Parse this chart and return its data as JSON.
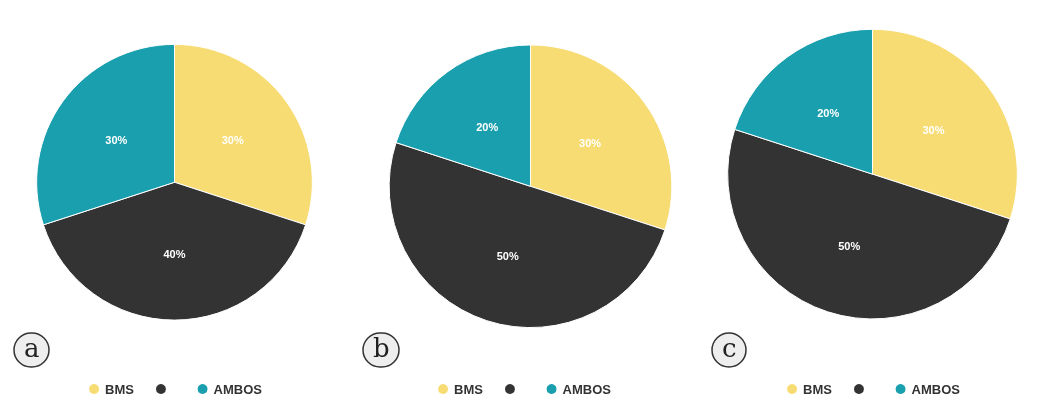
{
  "chart_data": [
    {
      "type": "pie",
      "title": "a",
      "categories": [
        "BMS",
        null,
        "AMBOS"
      ],
      "values": [
        30,
        40,
        30
      ],
      "value_labels": [
        "30%",
        "40%",
        "30%"
      ],
      "colors": [
        "#f7dc73",
        "#333333",
        "#1a9fae"
      ],
      "legend": "bottom"
    },
    {
      "type": "pie",
      "title": "b",
      "categories": [
        "BMS",
        null,
        "AMBOS"
      ],
      "values": [
        30,
        50,
        20
      ],
      "value_labels": [
        "30%",
        "50%",
        "20%"
      ],
      "colors": [
        "#f7dc73",
        "#333333",
        "#1a9fae"
      ],
      "legend": "bottom"
    },
    {
      "type": "pie",
      "title": "c",
      "categories": [
        "BMS",
        null,
        "AMBOS"
      ],
      "values": [
        30,
        50,
        20
      ],
      "value_labels": [
        "30%",
        "50%",
        "20%"
      ],
      "colors": [
        "#f7dc73",
        "#333333",
        "#1a9fae"
      ],
      "legend": "bottom"
    }
  ]
}
